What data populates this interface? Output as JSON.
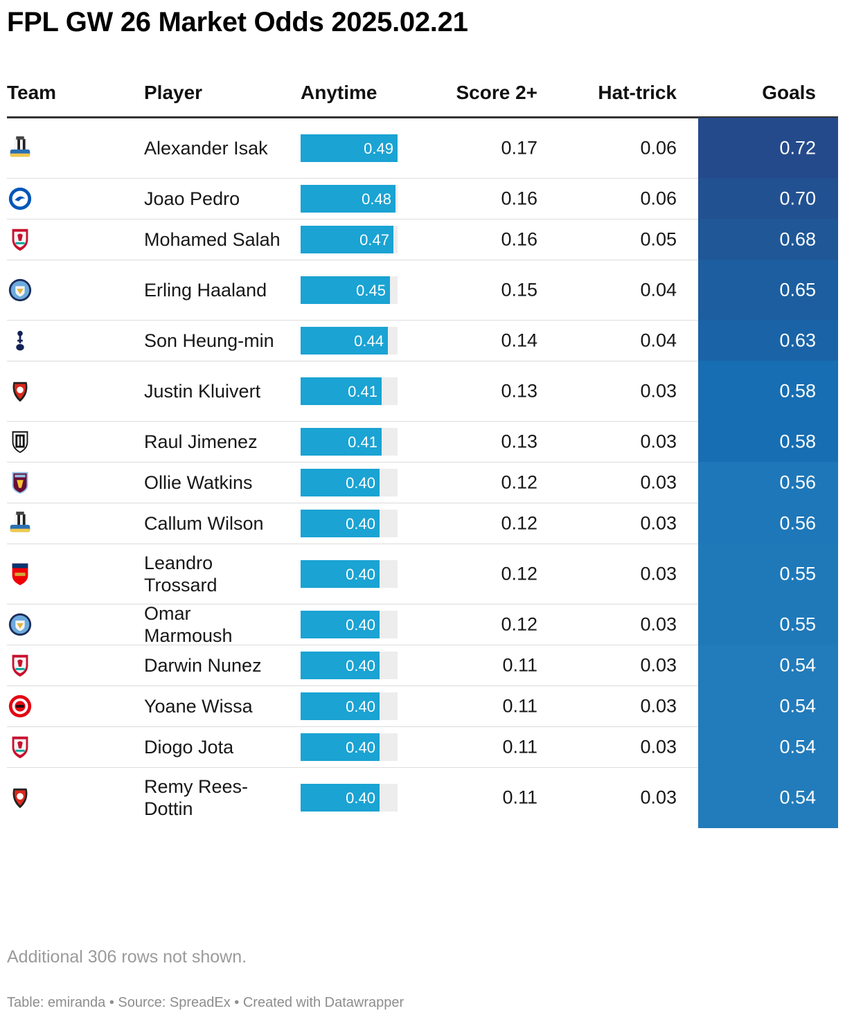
{
  "title": "FPL GW 26 Market Odds 2025.02.21",
  "columns": {
    "team": "Team",
    "player": "Player",
    "anytime": "Anytime",
    "score2": "Score 2+",
    "hattrick": "Hat-trick",
    "goals": "Goals"
  },
  "colors": {
    "bar": "#1aa3d3",
    "bar_track": "#ededed",
    "goals_high": "#264a8a",
    "goals_low": "#2077b8"
  },
  "rows": [
    {
      "club": "Newcastle",
      "player": "Alexander Isak",
      "anytime": "0.49",
      "score2": "0.17",
      "hattrick": "0.06",
      "goals": "0.72",
      "goals_color": "#254a8b"
    },
    {
      "club": "Brighton",
      "player": "Joao Pedro",
      "anytime": "0.48",
      "score2": "0.16",
      "hattrick": "0.06",
      "goals": "0.70",
      "goals_color": "#225191"
    },
    {
      "club": "Liverpool",
      "player": "Mohamed Salah",
      "anytime": "0.47",
      "score2": "0.16",
      "hattrick": "0.05",
      "goals": "0.68",
      "goals_color": "#1f5797"
    },
    {
      "club": "Manchester City",
      "player": "Erling Haaland",
      "anytime": "0.45",
      "score2": "0.15",
      "hattrick": "0.04",
      "goals": "0.65",
      "goals_color": "#1c5e9f"
    },
    {
      "club": "Tottenham",
      "player": "Son Heung-min",
      "anytime": "0.44",
      "score2": "0.14",
      "hattrick": "0.04",
      "goals": "0.63",
      "goals_color": "#1a63a6"
    },
    {
      "club": "Bournemouth",
      "player": "Justin Kluivert",
      "anytime": "0.41",
      "score2": "0.13",
      "hattrick": "0.03",
      "goals": "0.58",
      "goals_color": "#176eb2"
    },
    {
      "club": "Fulham",
      "player": "Raul Jimenez",
      "anytime": "0.41",
      "score2": "0.13",
      "hattrick": "0.03",
      "goals": "0.58",
      "goals_color": "#176eb2"
    },
    {
      "club": "Aston Villa",
      "player": "Ollie Watkins",
      "anytime": "0.40",
      "score2": "0.12",
      "hattrick": "0.03",
      "goals": "0.56",
      "goals_color": "#1e77b8"
    },
    {
      "club": "Newcastle",
      "player": "Callum Wilson",
      "anytime": "0.40",
      "score2": "0.12",
      "hattrick": "0.03",
      "goals": "0.56",
      "goals_color": "#1e77b8"
    },
    {
      "club": "Arsenal",
      "player": "Leandro Trossard",
      "anytime": "0.40",
      "score2": "0.12",
      "hattrick": "0.03",
      "goals": "0.55",
      "goals_color": "#1f79b9"
    },
    {
      "club": "Manchester City",
      "player": "Omar Marmoush",
      "anytime": "0.40",
      "score2": "0.12",
      "hattrick": "0.03",
      "goals": "0.55",
      "goals_color": "#1f79b9"
    },
    {
      "club": "Liverpool",
      "player": "Darwin Nunez",
      "anytime": "0.40",
      "score2": "0.11",
      "hattrick": "0.03",
      "goals": "0.54",
      "goals_color": "#227bba"
    },
    {
      "club": "Brentford",
      "player": "Yoane Wissa",
      "anytime": "0.40",
      "score2": "0.11",
      "hattrick": "0.03",
      "goals": "0.54",
      "goals_color": "#227bba"
    },
    {
      "club": "Liverpool",
      "player": "Diogo Jota",
      "anytime": "0.40",
      "score2": "0.11",
      "hattrick": "0.03",
      "goals": "0.54",
      "goals_color": "#227bba"
    },
    {
      "club": "Bournemouth",
      "player": "Remy Rees-Dottin",
      "anytime": "0.40",
      "score2": "0.11",
      "hattrick": "0.03",
      "goals": "0.54",
      "goals_color": "#227bba"
    }
  ],
  "note": "Additional 306 rows not shown.",
  "footer": "Table: emiranda • Source: SpreadEx • Created with Datawrapper"
}
